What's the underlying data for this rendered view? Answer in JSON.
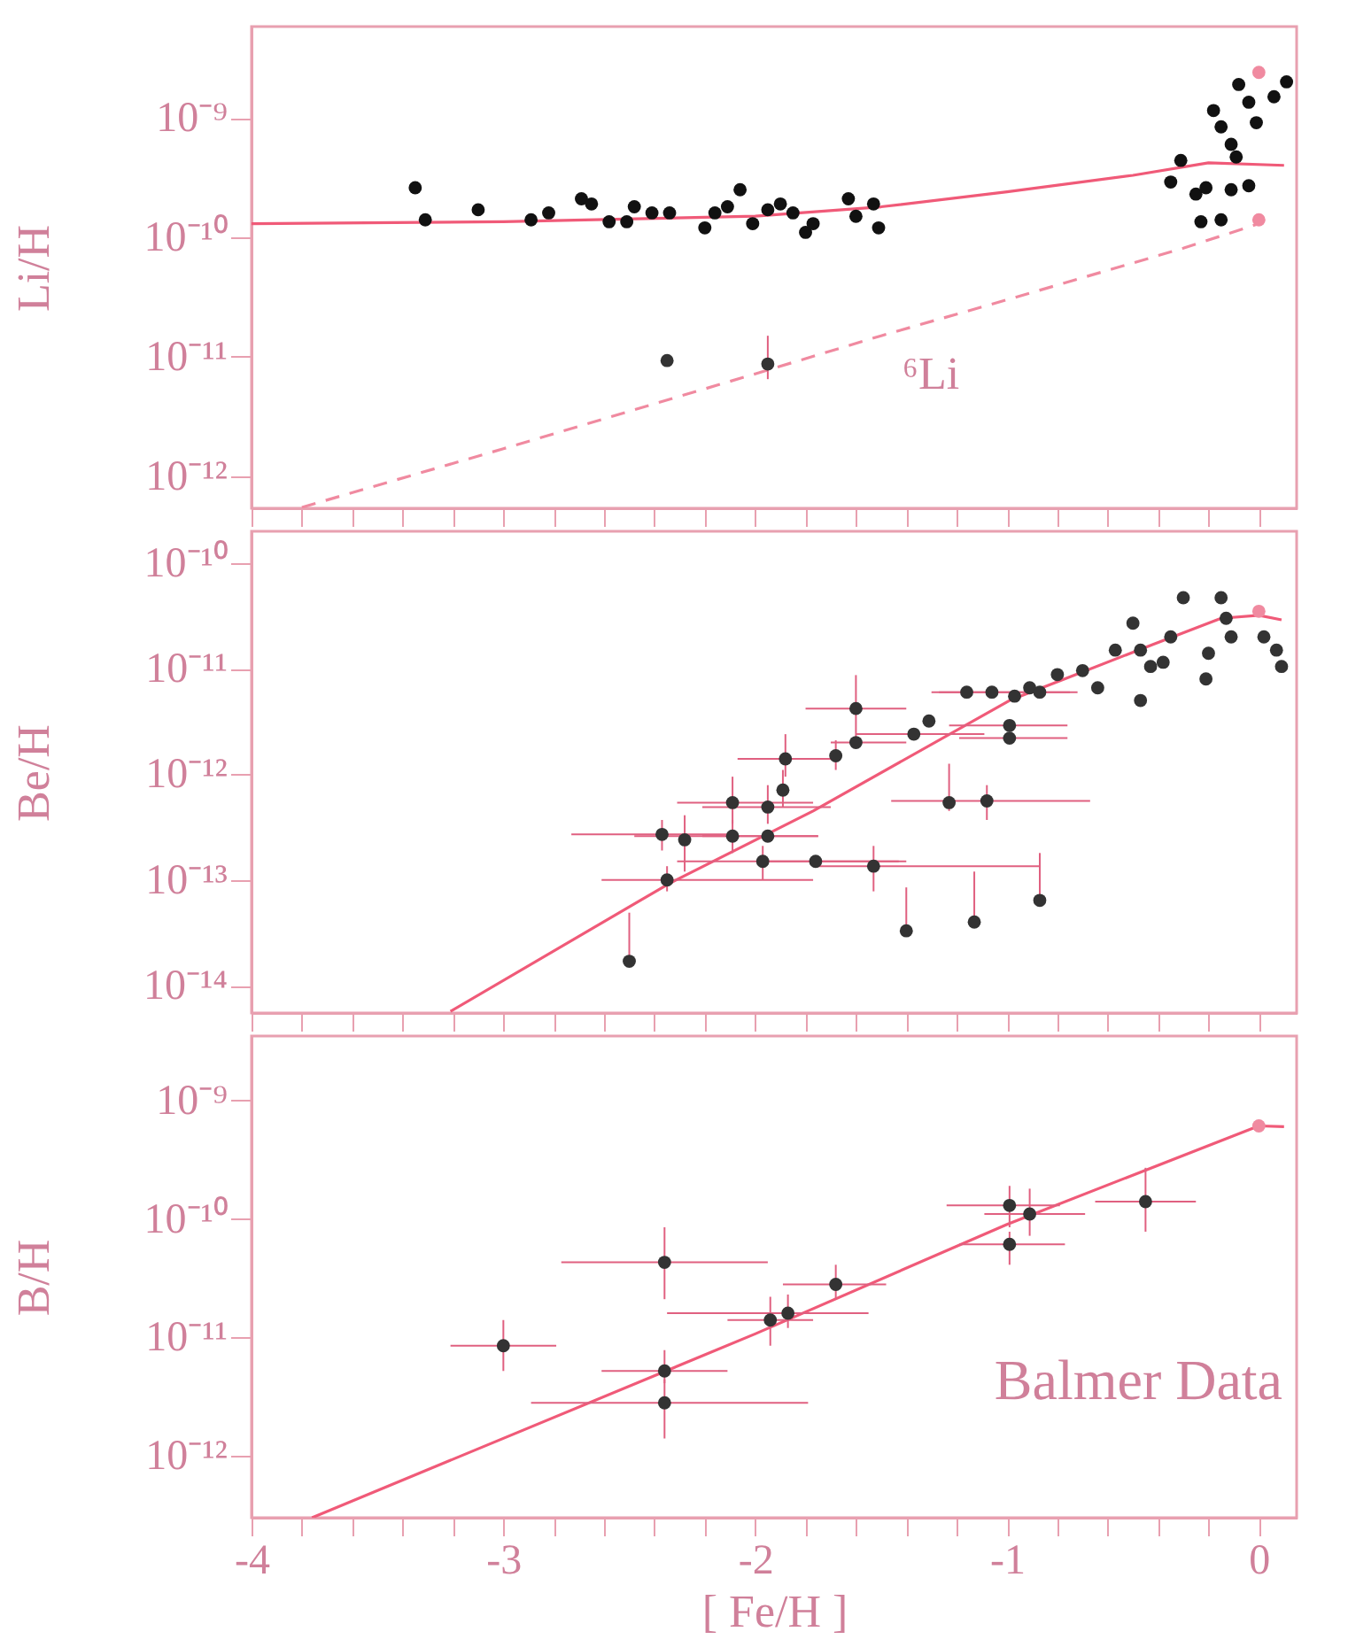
{
  "chart_data": [
    {
      "type": "scatter",
      "ylabel": "Li/H",
      "log": "y",
      "tick_labels": "y",
      "xlim": [
        -4,
        0.15
      ],
      "xticks": [
        -4,
        {
          "value": -3.8,
          "label": null
        },
        {
          "value": -3.6,
          "label": null
        },
        {
          "value": -3.4,
          "label": null
        },
        {
          "value": -3.2,
          "label": null
        },
        -3,
        {
          "value": -2.8,
          "label": null
        },
        {
          "value": -2.6,
          "label": null
        },
        {
          "value": -2.4,
          "label": null
        },
        {
          "value": -2.2,
          "label": null
        },
        -2,
        {
          "value": -1.8,
          "label": null
        },
        {
          "value": -1.6,
          "label": null
        },
        {
          "value": -1.4,
          "label": null
        },
        {
          "value": -1.2,
          "label": null
        },
        -1,
        {
          "value": -0.8,
          "label": null
        },
        {
          "value": -0.6,
          "label": null
        },
        {
          "value": -0.4,
          "label": null
        },
        {
          "value": -0.2,
          "label": null
        },
        0
      ],
      "ylim": [
        5.4e-13,
        5.8e-09
      ],
      "yticks": [
        {
          "value": 1e-09,
          "label": "10⁻⁹"
        },
        {
          "value": 1e-10,
          "label": "10⁻¹⁰"
        },
        {
          "value": 1e-11,
          "label": "10⁻¹¹"
        },
        {
          "value": 1e-12,
          "label": "10⁻¹²"
        }
      ],
      "series": [
        {
          "type": "line",
          "color": "#f05a78",
          "line_style": "solid",
          "marker": "none",
          "x": [
            -4,
            -3,
            -2,
            -1.5,
            -1,
            -0.5,
            -0.2,
            0.1
          ],
          "values": [
            1.3e-10,
            1.35e-10,
            1.5e-10,
            1.8e-10,
            2.4e-10,
            3.3e-10,
            4.2e-10,
            4e-10
          ]
        },
        {
          "type": "line",
          "name": "⁶Li",
          "color": "#f08aa0",
          "line_style": "dashed",
          "marker": "none",
          "x": [
            -3.8,
            -3,
            -2,
            -1.5,
            -1,
            -0.3,
            0
          ],
          "values": [
            5.5e-13,
            1.7e-12,
            7.2e-12,
            1.5e-11,
            3e-11,
            8.1e-11,
            1.3e-10
          ]
        },
        {
          "type": "scatter",
          "color": "#111111",
          "marker": "circle",
          "x": [
            -3.35,
            -3.31,
            -3.1,
            -2.89,
            -2.82,
            -2.69,
            -2.65,
            -2.58,
            -2.51,
            -2.48,
            -2.41,
            -2.34,
            -2.2,
            -2.16,
            -2.11,
            -2.06,
            -2.01,
            -1.95,
            -1.9,
            -1.85,
            -1.8,
            -1.77,
            -1.63,
            -1.6,
            -1.53,
            -1.51,
            -0.35,
            -0.31,
            -0.25,
            -0.23,
            -0.21,
            -0.18,
            -0.15,
            -0.15,
            -0.11,
            -0.11,
            -0.09,
            -0.08,
            -0.04,
            -0.04,
            -0.01,
            0.06,
            0.11
          ],
          "values": [
            2.6e-10,
            1.4e-10,
            1.7e-10,
            1.4e-10,
            1.6e-10,
            2.1e-10,
            1.9e-10,
            1.35e-10,
            1.35e-10,
            1.8e-10,
            1.6e-10,
            1.6e-10,
            1.2e-10,
            1.6e-10,
            1.8e-10,
            2.5e-10,
            1.3e-10,
            1.7e-10,
            1.9e-10,
            1.6e-10,
            1.1e-10,
            1.3e-10,
            2.1e-10,
            1.5e-10,
            1.9e-10,
            1.2e-10,
            2.9e-10,
            4.4e-10,
            2.3e-10,
            1.35e-10,
            2.6e-10,
            1.15e-09,
            8.4e-10,
            1.4e-10,
            6e-10,
            2.5e-10,
            4.7e-10,
            1.9e-09,
            1.35e-09,
            2.7e-10,
            9.1e-10,
            1.5e-09,
            2e-09
          ]
        },
        {
          "type": "scatter",
          "color": "#333333",
          "marker": "circle",
          "x": [
            -2.35,
            -1.95
          ],
          "values": [
            9.3e-12,
            8.7e-12
          ],
          "errors": [
            null,
            [
              6.5e-12,
              1.5e-11
            ]
          ]
        },
        {
          "type": "scatter",
          "color": "#f08aa0",
          "marker": "circle",
          "x": [
            0,
            0
          ],
          "values": [
            2.4e-09,
            1.4e-10
          ]
        }
      ]
    },
    {
      "type": "scatter",
      "ylabel": "Be/H",
      "log": "y",
      "tick_labels": "y",
      "xlim": [
        -4,
        0.15
      ],
      "xticks": [
        -4,
        {
          "value": -3.8,
          "label": null
        },
        {
          "value": -3.6,
          "label": null
        },
        {
          "value": -3.4,
          "label": null
        },
        {
          "value": -3.2,
          "label": null
        },
        -3,
        {
          "value": -2.8,
          "label": null
        },
        {
          "value": -2.6,
          "label": null
        },
        {
          "value": -2.4,
          "label": null
        },
        {
          "value": -2.2,
          "label": null
        },
        -2,
        {
          "value": -1.8,
          "label": null
        },
        {
          "value": -1.6,
          "label": null
        },
        {
          "value": -1.4,
          "label": null
        },
        {
          "value": -1.2,
          "label": null
        },
        -1,
        {
          "value": -0.8,
          "label": null
        },
        {
          "value": -0.6,
          "label": null
        },
        {
          "value": -0.4,
          "label": null
        },
        {
          "value": -0.2,
          "label": null
        },
        0
      ],
      "ylim": [
        5.5e-15,
        2e-10
      ],
      "yticks": [
        {
          "value": 1e-10,
          "label": "10⁻¹⁰"
        },
        {
          "value": 1e-11,
          "label": "10⁻¹¹"
        },
        {
          "value": 1e-12,
          "label": "10⁻¹²"
        },
        {
          "value": 1e-13,
          "label": "10⁻¹³"
        },
        {
          "value": 1e-14,
          "label": "10⁻¹⁴"
        }
      ],
      "series": [
        {
          "type": "line",
          "color": "#f05a78",
          "line_style": "solid",
          "marker": "none",
          "x": [
            -3.21,
            -2.34,
            -1.77,
            -0.99,
            -0.42,
            -0.15,
            0,
            0.09
          ],
          "values": [
            5.7e-15,
            9.3e-14,
            4.5e-13,
            5e-12,
            1.7e-11,
            3e-11,
            3.2e-11,
            2.9e-11
          ]
        },
        {
          "type": "scatter",
          "color": "#333333",
          "marker": "circle",
          "x": [
            -2.5,
            -2.37,
            -2.28,
            -2.35,
            -2.09,
            -2.09,
            -1.95,
            -1.95,
            -1.97,
            -1.89,
            -1.88,
            -1.76,
            -1.68,
            -1.6,
            -1.6,
            -1.53,
            -1.4,
            -1.37,
            -1.31,
            -1.23,
            -1.08,
            -1.13,
            -0.87,
            -1.16,
            -1.06,
            -0.97,
            -0.99,
            -0.99,
            -0.91,
            -0.87,
            -0.8,
            -0.7,
            -0.64,
            -0.57,
            -0.5,
            -0.47,
            -0.47,
            -0.43,
            -0.38,
            -0.35,
            -0.3,
            -0.21,
            -0.2,
            -0.15,
            -0.13,
            -0.11,
            0.02,
            0.09,
            0.07
          ],
          "values": [
            1.7e-14,
            2.7e-13,
            2.4e-13,
            1e-13,
            2.6e-13,
            5.4e-13,
            4.9e-13,
            2.6e-13,
            1.5e-13,
            7.1e-13,
            1.4e-12,
            1.5e-13,
            1.5e-12,
            4.2e-12,
            2e-12,
            1.35e-13,
            3.3e-14,
            2.4e-12,
            3.2e-12,
            5.4e-13,
            5.6e-13,
            4e-14,
            6.4e-14,
            6e-12,
            6e-12,
            5.5e-12,
            2.9e-12,
            2.2e-12,
            6.6e-12,
            6e-12,
            8.8e-12,
            9.6e-12,
            6.6e-12,
            1.5e-11,
            2.7e-11,
            5e-12,
            1.5e-11,
            1.05e-11,
            1.15e-11,
            2e-11,
            4.7e-11,
            8e-12,
            1.4e-11,
            4.7e-11,
            3e-11,
            2e-11,
            2e-11,
            1.05e-11,
            1.5e-11
          ],
          "errors": [
            [
              1.7e-14,
              4.9e-14
            ],
            [
              1.9e-13,
              3.7e-13
            ],
            [
              1.2e-13,
              4.1e-13
            ],
            [
              7.8e-14,
              1.35e-13
            ],
            [
              1.8e-13,
              3.7e-13
            ],
            [
              3.4e-13,
              9.5e-13
            ],
            [
              3.4e-13,
              7.9e-13
            ],
            null,
            [
              1e-13,
              2.1e-13
            ],
            [
              4.9e-13,
              1.1e-12
            ],
            [
              9.5e-13,
              2.4e-12
            ],
            null,
            [
              1.1e-12,
              2.1e-12
            ],
            [
              2e-12,
              8.7e-12
            ],
            null,
            [
              7.8e-14,
              2.1e-13
            ],
            [
              3.3e-14,
              8.5e-14
            ],
            null,
            null,
            [
              4.5e-13,
              1.26e-12
            ],
            [
              3.7e-13,
              7.9e-13
            ],
            [
              4e-14,
              1.2e-13
            ],
            [
              6.4e-14,
              1.8e-13
            ],
            null,
            null,
            null,
            null,
            null,
            null,
            null,
            null,
            null,
            null,
            null,
            null,
            null,
            null,
            null,
            null,
            null,
            null,
            null,
            null,
            null,
            null,
            null,
            null,
            null,
            null
          ],
          "xerrors": [
            null,
            [
              -2.73,
              -2.11
            ],
            null,
            [
              -2.61,
              -1.77
            ],
            [
              -2.48,
              -1.75
            ],
            [
              -2.31,
              -1.77
            ],
            [
              -2.21,
              -1.7
            ],
            [
              -2.21,
              -1.75
            ],
            [
              -2.31,
              -1.4
            ],
            null,
            [
              -2.07,
              -1.67
            ],
            [
              -1.97,
              -1.43
            ],
            null,
            [
              -1.8,
              -1.4
            ],
            [
              -1.7,
              -1.4
            ],
            [
              -1.77,
              -0.87
            ],
            null,
            [
              -1.6,
              -1.09
            ],
            null,
            null,
            [
              -1.46,
              -0.67
            ],
            null,
            null,
            [
              -1.3,
              -0.75
            ],
            [
              -1.27,
              -0.72
            ],
            null,
            [
              -1.23,
              -0.76
            ],
            [
              -1.19,
              -0.76
            ],
            null,
            null,
            null,
            null,
            null,
            null,
            null,
            null,
            null,
            null,
            null,
            null,
            null,
            null,
            null,
            null,
            null,
            null,
            null,
            null,
            null
          ]
        },
        {
          "type": "scatter",
          "color": "#f08aa0",
          "marker": "circle",
          "x": [
            0
          ],
          "values": [
            3.5e-11
          ]
        }
      ]
    },
    {
      "type": "scatter",
      "ylabel": "B/H",
      "xlabel": "[ Fe/H ]",
      "log": "y",
      "xlim": [
        -4,
        0.15
      ],
      "xticks": [
        -4,
        {
          "value": -3.8,
          "label": null
        },
        {
          "value": -3.6,
          "label": null
        },
        {
          "value": -3.4,
          "label": null
        },
        {
          "value": -3.2,
          "label": null
        },
        -3,
        {
          "value": -2.8,
          "label": null
        },
        {
          "value": -2.6,
          "label": null
        },
        {
          "value": -2.4,
          "label": null
        },
        {
          "value": -2.2,
          "label": null
        },
        -2,
        {
          "value": -1.8,
          "label": null
        },
        {
          "value": -1.6,
          "label": null
        },
        {
          "value": -1.4,
          "label": null
        },
        {
          "value": -1.2,
          "label": null
        },
        -1,
        {
          "value": -0.8,
          "label": null
        },
        {
          "value": -0.6,
          "label": null
        },
        {
          "value": -0.4,
          "label": null
        },
        {
          "value": -0.2,
          "label": null
        },
        0
      ],
      "ylim": [
        3e-13,
        3.5e-09
      ],
      "yticks": [
        {
          "value": 1e-09,
          "label": "10⁻⁹"
        },
        {
          "value": 1e-10,
          "label": "10⁻¹⁰"
        },
        {
          "value": 1e-11,
          "label": "10⁻¹¹"
        },
        {
          "value": 1e-12,
          "label": "10⁻¹²"
        }
      ],
      "annotations": [
        "Balmer Data"
      ],
      "series": [
        {
          "type": "line",
          "color": "#f05a78",
          "line_style": "solid",
          "marker": "none",
          "x": [
            -3.76,
            -2,
            -1,
            0,
            0.1
          ],
          "values": [
            3e-13,
            1.07e-11,
            9e-11,
            6.1e-10,
            6e-10
          ]
        },
        {
          "type": "scatter",
          "color": "#333333",
          "marker": "circle",
          "x": [
            -3.0,
            -2.36,
            -2.36,
            -2.36,
            -1.94,
            -1.87,
            -1.68,
            -0.99,
            -0.99,
            -0.91,
            -0.45
          ],
          "values": [
            8.5e-12,
            4.3e-11,
            5.2e-12,
            2.8e-12,
            1.4e-11,
            1.6e-11,
            2.8e-11,
            1.3e-10,
            6.1e-11,
            1.1e-10,
            1.4e-10
          ],
          "errors": [
            [
              5.2e-12,
              1.4e-11
            ],
            [
              2.1e-11,
              8.5e-11
            ],
            [
              4.1e-12,
              7.8e-12
            ],
            [
              1.4e-12,
              4.4e-12
            ],
            [
              8.5e-12,
              2.2e-11
            ],
            [
              1.2e-11,
              2.3e-11
            ],
            [
              2.1e-11,
              4.1e-11
            ],
            [
              8.5e-11,
              1.9e-10
            ],
            [
              4.1e-11,
              7.8e-11
            ],
            [
              7.2e-11,
              1.8e-10
            ],
            [
              7.8e-11,
              2.7e-10
            ]
          ],
          "xerrors": [
            [
              -3.21,
              -2.79
            ],
            [
              -2.77,
              -1.95
            ],
            [
              -2.61,
              -2.11
            ],
            [
              -2.89,
              -1.79
            ],
            [
              -2.11,
              -1.77
            ],
            [
              -2.35,
              -1.55
            ],
            [
              -1.89,
              -1.48
            ],
            [
              -1.24,
              -0.79
            ],
            [
              -1.19,
              -0.77
            ],
            [
              -1.09,
              -0.69
            ],
            [
              -0.65,
              -0.25
            ]
          ]
        },
        {
          "type": "scatter",
          "color": "#f08aa0",
          "marker": "circle",
          "x": [
            0
          ],
          "values": [
            6.1e-10
          ]
        }
      ]
    }
  ]
}
